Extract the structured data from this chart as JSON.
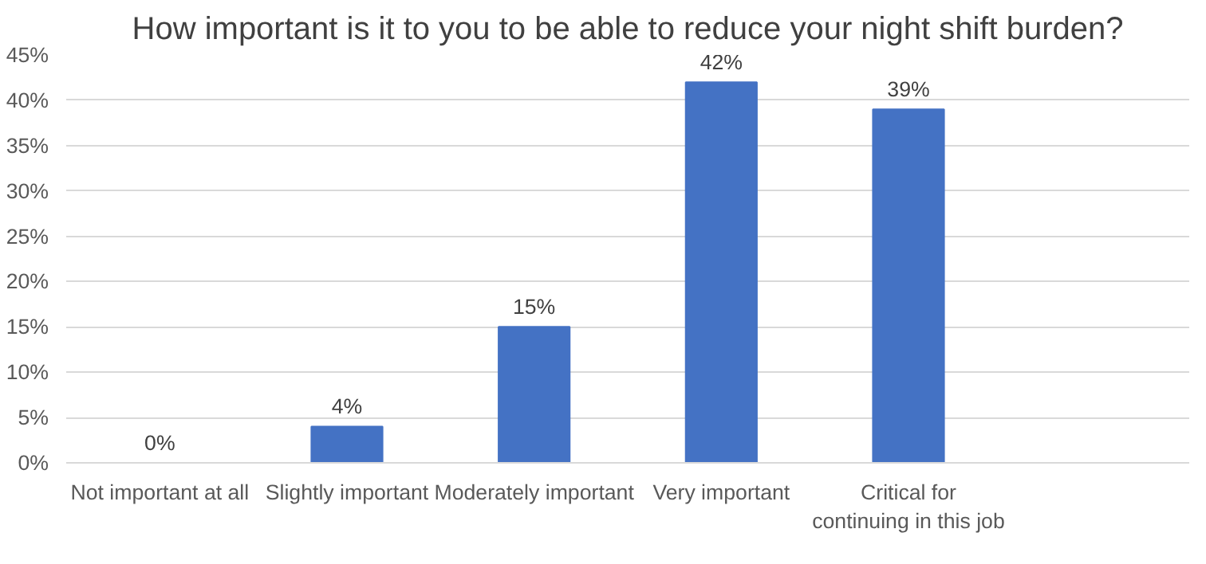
{
  "chart_data": {
    "type": "bar",
    "title": "How important is it to you to be able to reduce your night shift burden?",
    "categories": [
      "Not important at all",
      "Slightly important",
      "Moderately important",
      "Very important",
      "Critical for continuing in this job",
      null
    ],
    "series": [
      {
        "color": "#4472c4",
        "values": [
          0,
          4,
          15,
          42,
          39,
          null
        ]
      }
    ],
    "value_labels": [
      "0%",
      "4%",
      "15%",
      "42%",
      "39%",
      null
    ],
    "ylim": [
      0,
      45
    ],
    "yticks": [
      {
        "value": 0,
        "label": "0%"
      },
      {
        "value": 5,
        "label": "5%"
      },
      {
        "value": 10,
        "label": "10%"
      },
      {
        "value": 15,
        "label": "15%"
      },
      {
        "value": 20,
        "label": "20%"
      },
      {
        "value": 25,
        "label": "25%"
      },
      {
        "value": 30,
        "label": "30%"
      },
      {
        "value": 35,
        "label": "35%"
      },
      {
        "value": 40,
        "label": "40%"
      },
      {
        "value": 45,
        "label": "45%"
      }
    ],
    "grid": "y"
  }
}
